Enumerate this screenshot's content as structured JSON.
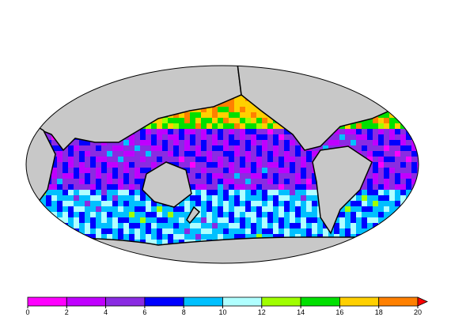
{
  "colorbar": {
    "ticks": [
      0,
      2,
      4,
      6,
      8,
      10,
      12,
      14,
      16,
      18,
      20
    ],
    "colors": [
      "#ff00ff",
      "#c000ff",
      "#8a2be2",
      "#0000ff",
      "#00c0ff",
      "#b0ffff",
      "#a0ff00",
      "#00e000",
      "#ffd000",
      "#ff8000"
    ],
    "extend_color": "#ff0000"
  }
}
